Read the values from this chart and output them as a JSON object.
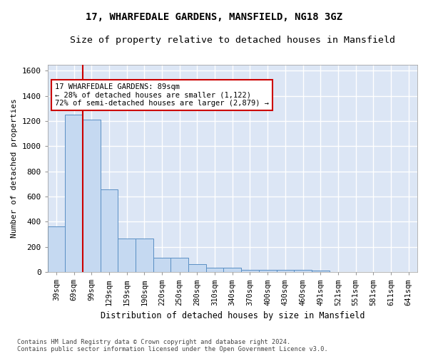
{
  "title": "17, WHARFEDALE GARDENS, MANSFIELD, NG18 3GZ",
  "subtitle": "Size of property relative to detached houses in Mansfield",
  "xlabel": "Distribution of detached houses by size in Mansfield",
  "ylabel": "Number of detached properties",
  "footer_line1": "Contains HM Land Registry data © Crown copyright and database right 2024.",
  "footer_line2": "Contains public sector information licensed under the Open Government Licence v3.0.",
  "bar_labels": [
    "39sqm",
    "69sqm",
    "99sqm",
    "129sqm",
    "159sqm",
    "190sqm",
    "220sqm",
    "250sqm",
    "280sqm",
    "310sqm",
    "340sqm",
    "370sqm",
    "400sqm",
    "430sqm",
    "460sqm",
    "491sqm",
    "521sqm",
    "551sqm",
    "581sqm",
    "611sqm",
    "641sqm"
  ],
  "bar_values": [
    365,
    1252,
    1210,
    655,
    265,
    265,
    115,
    115,
    65,
    35,
    35,
    20,
    20,
    15,
    15,
    10,
    0,
    0,
    0,
    0,
    0
  ],
  "bar_color": "#c5d9f1",
  "bar_edge_color": "#5a8fc4",
  "annotation_box_text": "17 WHARFEDALE GARDENS: 89sqm\n← 28% of detached houses are smaller (1,122)\n72% of semi-detached houses are larger (2,879) →",
  "vline_x": 1.5,
  "vline_color": "#cc0000",
  "ylim": [
    0,
    1650
  ],
  "yticks": [
    0,
    200,
    400,
    600,
    800,
    1000,
    1200,
    1400,
    1600
  ],
  "background_color": "#dce6f5",
  "grid_color": "#ffffff",
  "title_fontsize": 10,
  "subtitle_fontsize": 9.5
}
